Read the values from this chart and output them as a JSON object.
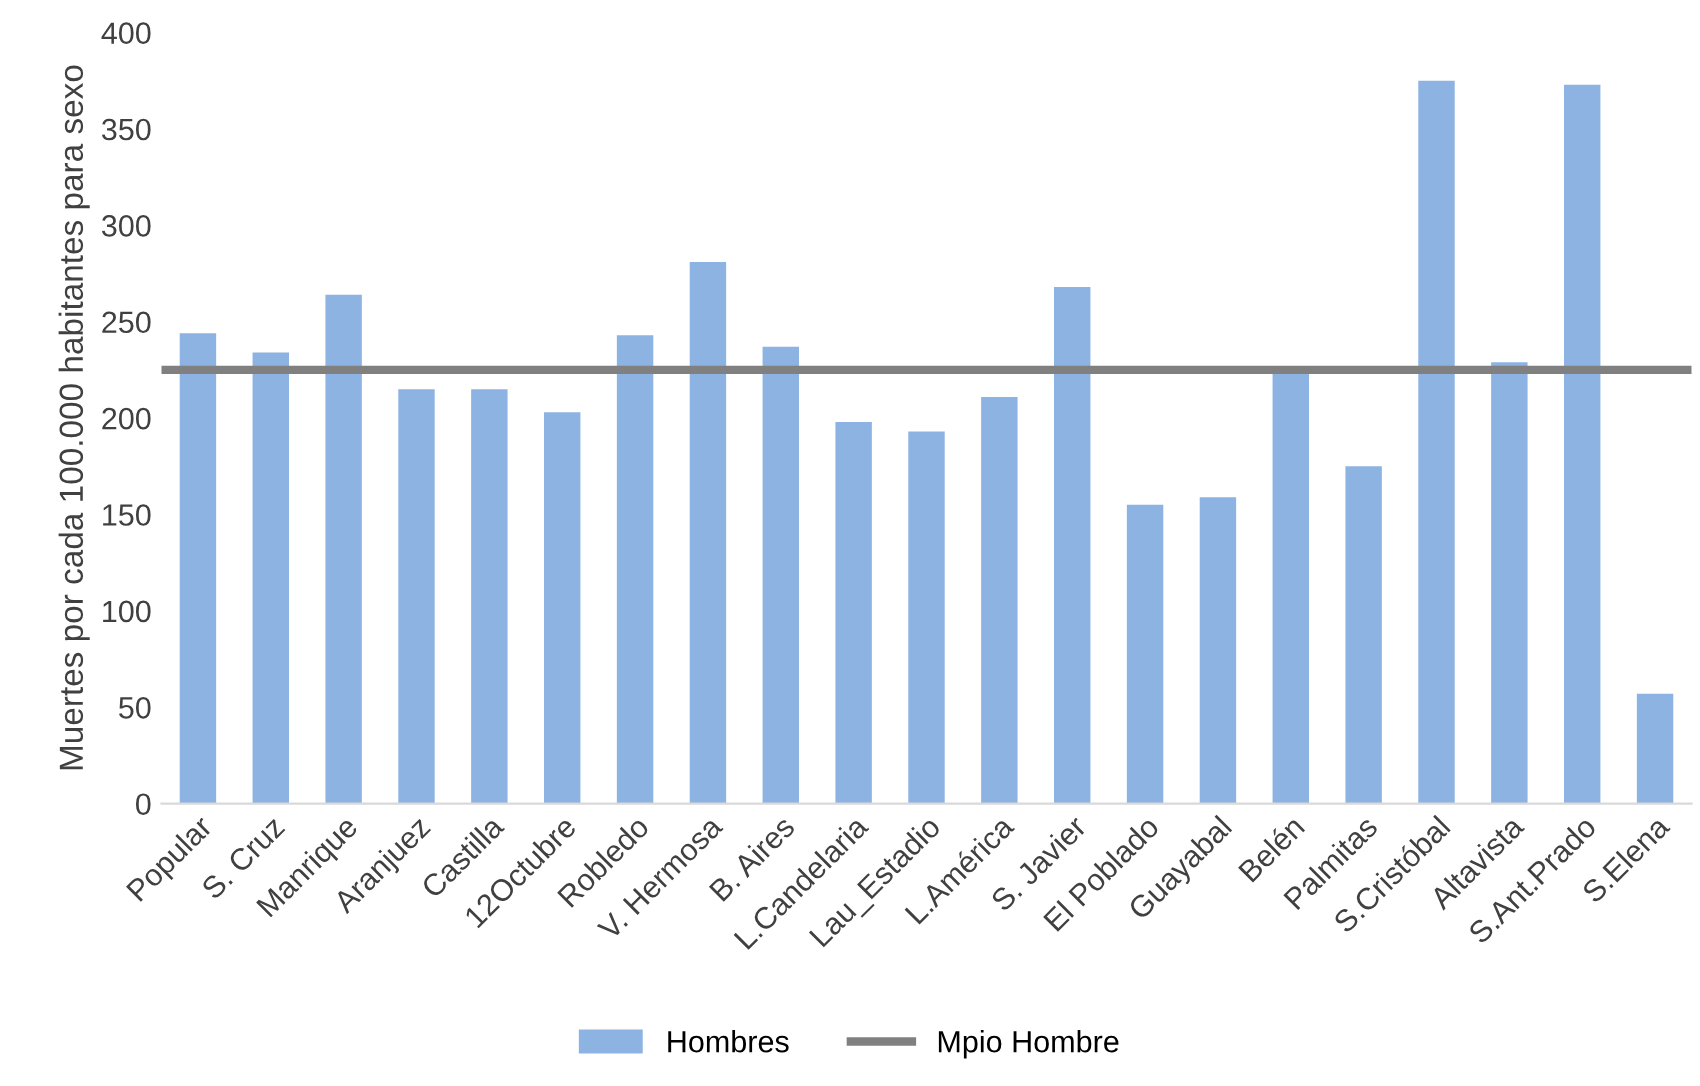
{
  "chart_data": {
    "type": "bar",
    "ylabel": "Muertes por cada 100.000 habitantes para sexo",
    "categories": [
      "Popular",
      "S. Cruz",
      "Manrique",
      "Aranjuez",
      "Castilla",
      "12Octubre",
      "Robledo",
      "V. Hermosa",
      "B. Aires",
      "L.Candelaria",
      "Lau_Estadio",
      "L.América",
      "S. Javier",
      "El Poblado",
      "Guayabal",
      "Belén",
      "Palmitas",
      "S.Cristóbal",
      "Altavista",
      "S.Ant.Prado",
      "S.Elena"
    ],
    "series": [
      {
        "name": "Hombres",
        "color": "#8db3e2",
        "values": [
          244,
          234,
          264,
          215,
          215,
          203,
          243,
          281,
          237,
          198,
          193,
          211,
          268,
          155,
          159,
          224,
          175,
          375,
          229,
          373,
          57
        ]
      }
    ],
    "ref_lines": [
      {
        "axis": "y",
        "value": 225,
        "label": "Mpio Hombre",
        "color": "#808080"
      }
    ],
    "ylim": [
      0,
      400
    ],
    "yticks": [
      0,
      50,
      100,
      150,
      200,
      250,
      300,
      350,
      400
    ],
    "grid": false,
    "legend": "bottom"
  }
}
